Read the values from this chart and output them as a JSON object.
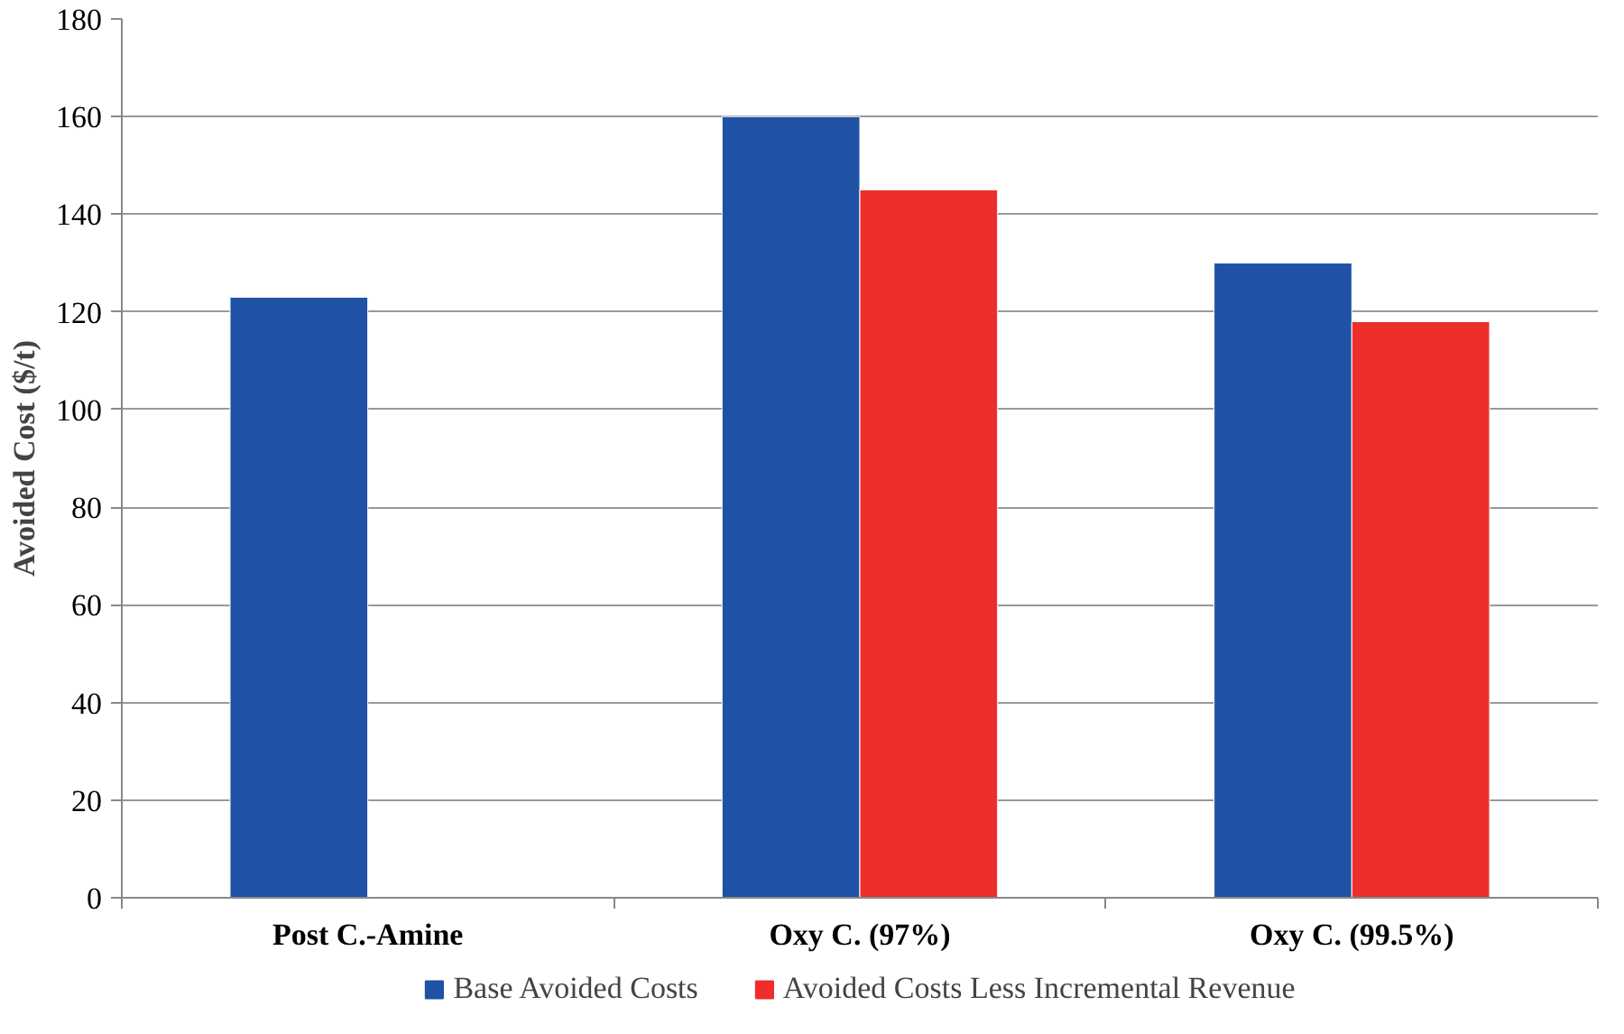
{
  "chart_data": {
    "type": "bar",
    "ylabel": "Avoided Cost ($/t)",
    "categories": [
      "Post C.-Amine",
      "Oxy C. (97%)",
      "Oxy C. (99.5%)"
    ],
    "series": [
      {
        "name": "Base Avoided Costs",
        "color": "#1f52a5",
        "values": [
          123,
          160,
          130
        ]
      },
      {
        "name": "Avoided Costs Less Incremental Revenue",
        "color": "#ee2e2c",
        "values": [
          null,
          145,
          118
        ]
      }
    ],
    "ylim": [
      0,
      180
    ],
    "yticks": [
      0,
      20,
      40,
      60,
      80,
      100,
      120,
      140,
      160,
      180
    ],
    "grid": "y",
    "legend": "bottom"
  }
}
